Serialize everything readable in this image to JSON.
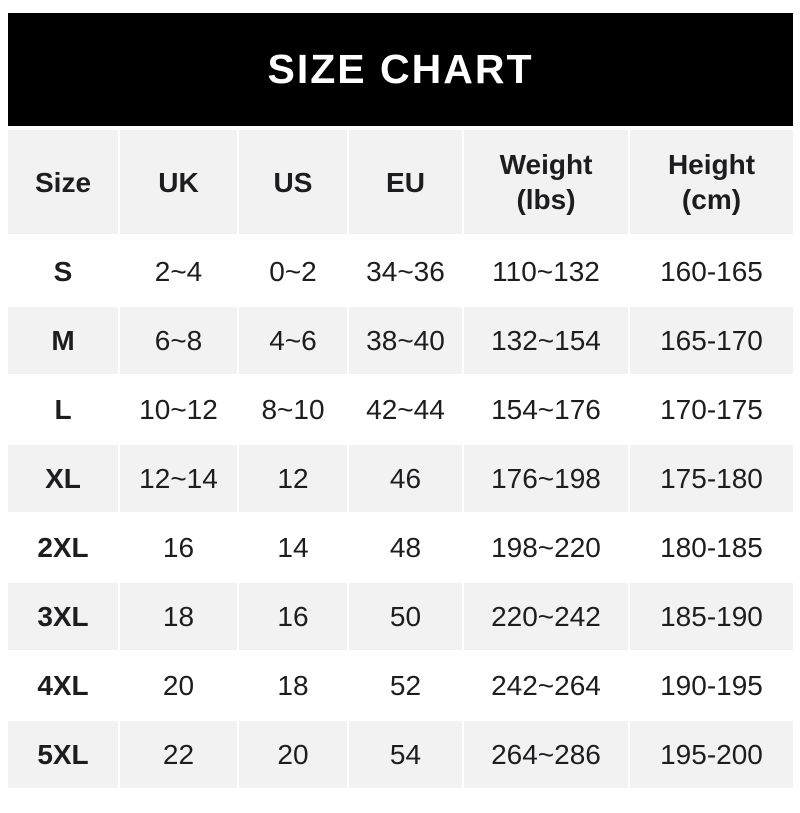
{
  "banner": {
    "title": "SIZE CHART"
  },
  "chart_data": {
    "type": "table",
    "title": "SIZE CHART",
    "columns": [
      "Size",
      "UK",
      "US",
      "EU",
      "Weight (lbs)",
      "Height (cm)"
    ],
    "header_display": [
      "Size",
      "UK",
      "US",
      "EU",
      "Weight\n(lbs)",
      "Height\n(cm)"
    ],
    "rows": [
      [
        "S",
        "2~4",
        "0~2",
        "34~36",
        "110~132",
        "160-165"
      ],
      [
        "M",
        "6~8",
        "4~6",
        "38~40",
        "132~154",
        "165-170"
      ],
      [
        "L",
        "10~12",
        "8~10",
        "42~44",
        "154~176",
        "170-175"
      ],
      [
        "XL",
        "12~14",
        "12",
        "46",
        "176~198",
        "175-180"
      ],
      [
        "2XL",
        "16",
        "14",
        "48",
        "198~220",
        "180-185"
      ],
      [
        "3XL",
        "18",
        "16",
        "50",
        "220~242",
        "185-190"
      ],
      [
        "4XL",
        "20",
        "18",
        "52",
        "242~264",
        "190-195"
      ],
      [
        "5XL",
        "22",
        "20",
        "54",
        "264~286",
        "195-200"
      ]
    ],
    "layout": {
      "header_background": "#f2f2f3",
      "row_alternating": [
        "#ffffff",
        "#f2f2f3"
      ],
      "first_column_bold": true
    }
  },
  "colors": {
    "banner_bg": "#000000",
    "banner_text": "#ffffff",
    "shaded_row_bg": "#f2f2f3",
    "plain_row_bg": "#ffffff",
    "text": "#1d1d1f"
  }
}
